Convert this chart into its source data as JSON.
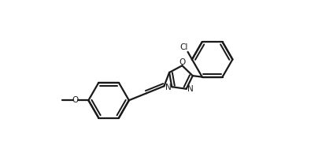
{
  "bg_color": "#ffffff",
  "line_color": "#1a1a1a",
  "lw": 1.6,
  "figsize": [
    4.09,
    1.84
  ],
  "dpi": 100,
  "xlim": [
    -2.8,
    3.8
  ],
  "ylim": [
    -0.8,
    3.6
  ]
}
